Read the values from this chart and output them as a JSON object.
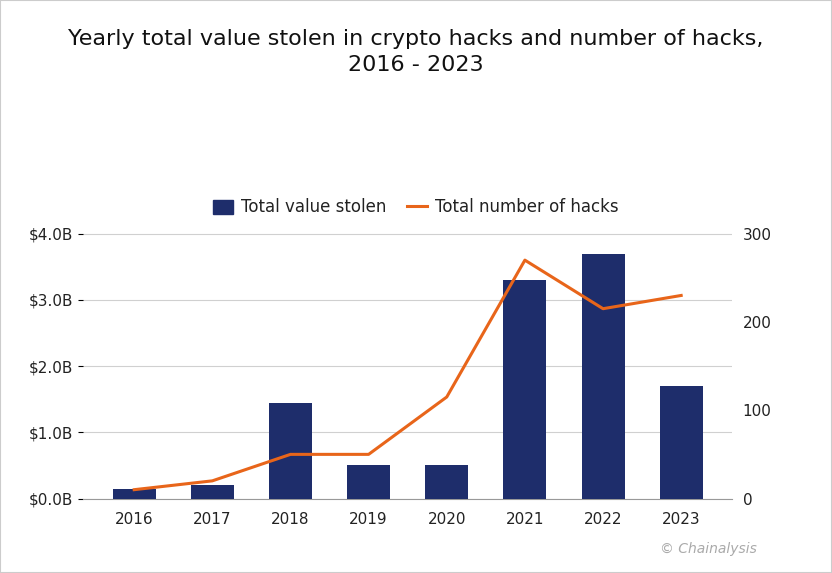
{
  "years": [
    2016,
    2017,
    2018,
    2019,
    2020,
    2021,
    2022,
    2023
  ],
  "value_stolen_B": [
    0.15,
    0.2,
    1.45,
    0.5,
    0.5,
    3.3,
    3.7,
    1.7
  ],
  "num_hacks": [
    10,
    20,
    50,
    50,
    115,
    270,
    215,
    230
  ],
  "bar_color": "#1e2d6b",
  "line_color": "#e8651a",
  "title_line1": "Yearly total value stolen in crypto hacks and number of hacks,",
  "title_line2": "2016 - 2023",
  "legend_bar": "Total value stolen",
  "legend_line": "Total number of hacks",
  "ylim_left": [
    0,
    4.5
  ],
  "ylim_right": [
    0,
    337.5
  ],
  "yticks_left": [
    0.0,
    1.0,
    2.0,
    3.0,
    4.0
  ],
  "ytick_labels_left": [
    "$0.0B",
    "$1.0B",
    "$2.0B",
    "$3.0B",
    "$4.0B"
  ],
  "yticks_right": [
    0,
    100,
    200,
    300
  ],
  "background_color": "#ffffff",
  "attribution": "© Chainalysis",
  "title_fontsize": 16,
  "legend_fontsize": 12,
  "tick_fontsize": 11,
  "bar_width": 0.55,
  "border_color": "#cccccc",
  "grid_color": "#d0d0d0"
}
